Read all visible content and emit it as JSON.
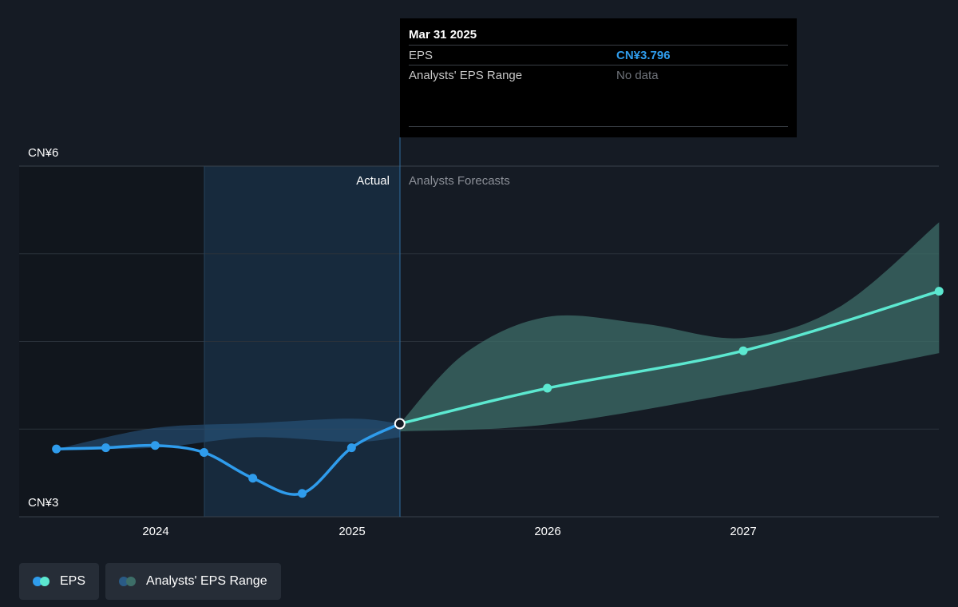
{
  "chart_data": {
    "type": "line",
    "y_axis": {
      "tick_labels": [
        "CN¥6",
        "CN¥3"
      ],
      "ylim": [
        3,
        6
      ]
    },
    "x_axis": {
      "tick_labels": [
        "2024",
        "2025",
        "2026",
        "2027"
      ]
    },
    "sections": {
      "actual": "Actual",
      "forecast": "Analysts Forecasts"
    },
    "series": [
      {
        "name": "EPS",
        "color_actual": "#2f9cec",
        "color_forecast": "#5ce8d0",
        "actual": [
          {
            "x": "2023-06-30",
            "y": 3.58
          },
          {
            "x": "2023-09-30",
            "y": 3.59
          },
          {
            "x": "2023-12-31",
            "y": 3.61
          },
          {
            "x": "2024-03-31",
            "y": 3.55
          },
          {
            "x": "2024-06-30",
            "y": 3.33
          },
          {
            "x": "2024-09-30",
            "y": 3.2
          },
          {
            "x": "2024-12-31",
            "y": 3.59
          },
          {
            "x": "2025-03-31",
            "y": 3.796
          }
        ],
        "forecast": [
          {
            "x": "2025-03-31",
            "y": 3.796
          },
          {
            "x": "2025-12-31",
            "y": 4.1
          },
          {
            "x": "2026-12-31",
            "y": 4.42
          },
          {
            "x": "2027-12-31",
            "y": 4.93
          }
        ]
      }
    ],
    "range_series": [
      {
        "name": "Analysts' EPS Range",
        "color_actual": "#2a5b86",
        "color_forecast": "#3d6e68",
        "actual_upper": [
          {
            "x": "2023-06-30",
            "y": 3.58
          },
          {
            "x": "2023-12-31",
            "y": 3.76
          },
          {
            "x": "2024-06-30",
            "y": 3.8
          },
          {
            "x": "2024-12-31",
            "y": 3.84
          },
          {
            "x": "2025-03-31",
            "y": 3.796
          }
        ],
        "actual_lower": [
          {
            "x": "2025-03-31",
            "y": 3.68
          },
          {
            "x": "2024-12-31",
            "y": 3.64
          },
          {
            "x": "2024-06-30",
            "y": 3.68
          },
          {
            "x": "2023-12-31",
            "y": 3.59
          },
          {
            "x": "2023-06-30",
            "y": 3.58
          }
        ],
        "forecast_upper": [
          {
            "x": "2025-03-31",
            "y": 3.796
          },
          {
            "x": "2025-07-31",
            "y": 4.4
          },
          {
            "x": "2025-12-31",
            "y": 4.71
          },
          {
            "x": "2026-06-30",
            "y": 4.65
          },
          {
            "x": "2026-12-31",
            "y": 4.53
          },
          {
            "x": "2027-06-30",
            "y": 4.8
          },
          {
            "x": "2027-12-31",
            "y": 5.52
          }
        ],
        "forecast_lower": [
          {
            "x": "2027-12-31",
            "y": 4.4
          },
          {
            "x": "2026-12-31",
            "y": 4.07
          },
          {
            "x": "2025-12-31",
            "y": 3.79
          },
          {
            "x": "2025-03-31",
            "y": 3.73
          }
        ]
      }
    ],
    "highlight": {
      "x": "2025-03-31",
      "y": 3.796
    },
    "grid": true
  },
  "tooltip": {
    "date": "Mar 31 2025",
    "rows": [
      {
        "label": "EPS",
        "value": "CN¥3.796"
      },
      {
        "label": "Analysts' EPS Range",
        "value": "No data"
      }
    ]
  },
  "legend": [
    {
      "label": "EPS",
      "colors": [
        "#2f9cec",
        "#5ce8d0"
      ]
    },
    {
      "label": "Analysts' EPS Range",
      "colors": [
        "#2a5b86",
        "#3d6e68"
      ]
    }
  ]
}
